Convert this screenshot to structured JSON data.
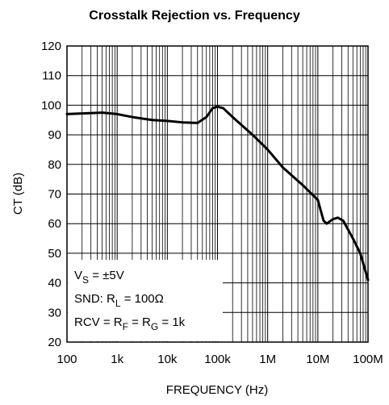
{
  "chart_data": {
    "type": "line",
    "title": "Crosstalk Rejection vs. Frequency",
    "xlabel": "FREQUENCY (Hz)",
    "ylabel": "CT (dB)",
    "x": [
      100,
      200,
      500,
      1000,
      2000,
      5000,
      10000,
      20000,
      40000,
      60000,
      80000,
      100000,
      130000,
      200000,
      500000,
      1000000,
      2000000,
      5000000,
      10000000,
      13000000,
      15000000,
      20000000,
      25000000,
      32000000,
      50000000,
      70000000,
      100000000
    ],
    "series": [
      {
        "name": "CT",
        "color": "#000000",
        "values": [
          97,
          97.2,
          97.5,
          97,
          96,
          95,
          94.7,
          94.2,
          94,
          96,
          99,
          99.5,
          99,
          96,
          90,
          85,
          79,
          73,
          68,
          61,
          60,
          61.5,
          62,
          61,
          55,
          50,
          41
        ]
      }
    ],
    "xlim": [
      100,
      100000000
    ],
    "log_x": true,
    "minor_grid": true,
    "xticks": [
      100,
      {
        "value": 1000,
        "label": "1k"
      },
      {
        "value": 10000,
        "label": "10k"
      },
      {
        "value": 100000,
        "label": "100k"
      },
      {
        "value": 1000000,
        "label": "1M"
      },
      {
        "value": 10000000,
        "label": "10M"
      },
      {
        "value": 100000000,
        "label": "100M"
      }
    ],
    "ylim": [
      20,
      120
    ],
    "yticks": [
      20,
      30,
      40,
      50,
      60,
      70,
      80,
      90,
      100,
      110,
      120
    ],
    "grid": true,
    "annotation": [
      [
        {
          "text": "V",
          "sub": false
        },
        {
          "text": "S",
          "sub": true
        },
        {
          "text": " = ±5V",
          "sub": false
        }
      ],
      [
        {
          "text": "SND: R",
          "sub": false
        },
        {
          "text": "L",
          "sub": true
        },
        {
          "text": " = 100Ω",
          "sub": false
        }
      ],
      [
        {
          "text": "RCV = R",
          "sub": false
        },
        {
          "text": "F",
          "sub": true
        },
        {
          "text": " = R",
          "sub": false
        },
        {
          "text": "G",
          "sub": true
        },
        {
          "text": " = 1k",
          "sub": false
        }
      ]
    ]
  }
}
